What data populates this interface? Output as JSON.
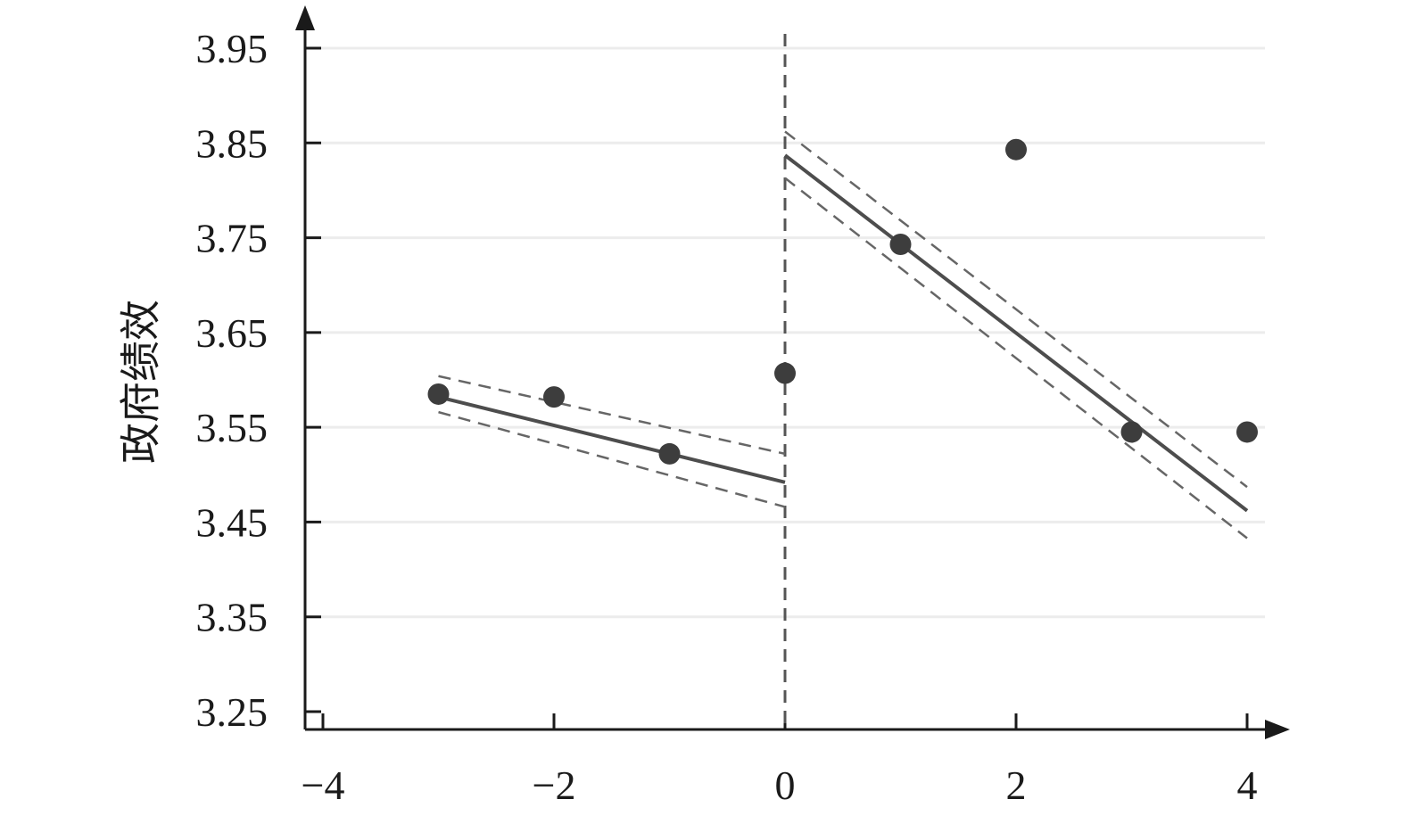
{
  "chart_data": {
    "type": "scatter",
    "title": "",
    "xlabel": "",
    "ylabel": "政府绩效",
    "xlim": [
      -4,
      4
    ],
    "ylim": [
      3.25,
      3.95
    ],
    "x_ticks": [
      -4,
      -2,
      0,
      2,
      4
    ],
    "x_tick_labels": [
      "−4",
      "−2",
      "0",
      "2",
      "4"
    ],
    "y_ticks": [
      3.25,
      3.35,
      3.45,
      3.55,
      3.65,
      3.75,
      3.85,
      3.95
    ],
    "y_tick_labels": [
      "3.25",
      "3.35",
      "3.45",
      "3.55",
      "3.65",
      "3.75",
      "3.85",
      "3.95"
    ],
    "grid": "horizontal",
    "cutoff_x": 0,
    "points": [
      {
        "x": -3,
        "y": 3.585
      },
      {
        "x": -2,
        "y": 3.582
      },
      {
        "x": -1,
        "y": 3.522
      },
      {
        "x": 0,
        "y": 3.607
      },
      {
        "x": 1,
        "y": 3.743
      },
      {
        "x": 2,
        "y": 3.843
      },
      {
        "x": 3,
        "y": 3.545
      },
      {
        "x": 4,
        "y": 3.545
      }
    ],
    "fits": [
      {
        "segment": "left",
        "x": [
          -3,
          0
        ],
        "fit": [
          3.582,
          3.492
        ],
        "ci_upper": [
          3.604,
          3.522
        ],
        "ci_lower": [
          3.566,
          3.466
        ]
      },
      {
        "segment": "right",
        "x": [
          0,
          4
        ],
        "fit": [
          3.837,
          3.462
        ],
        "ci_upper": [
          3.862,
          3.487
        ],
        "ci_lower": [
          3.813,
          3.433
        ]
      }
    ],
    "colors": {
      "points": "#3d3d3d",
      "fit": "#4d4d4d",
      "ci": "#666666",
      "grid": "#ececec",
      "axis": "#1a1a1a"
    }
  }
}
